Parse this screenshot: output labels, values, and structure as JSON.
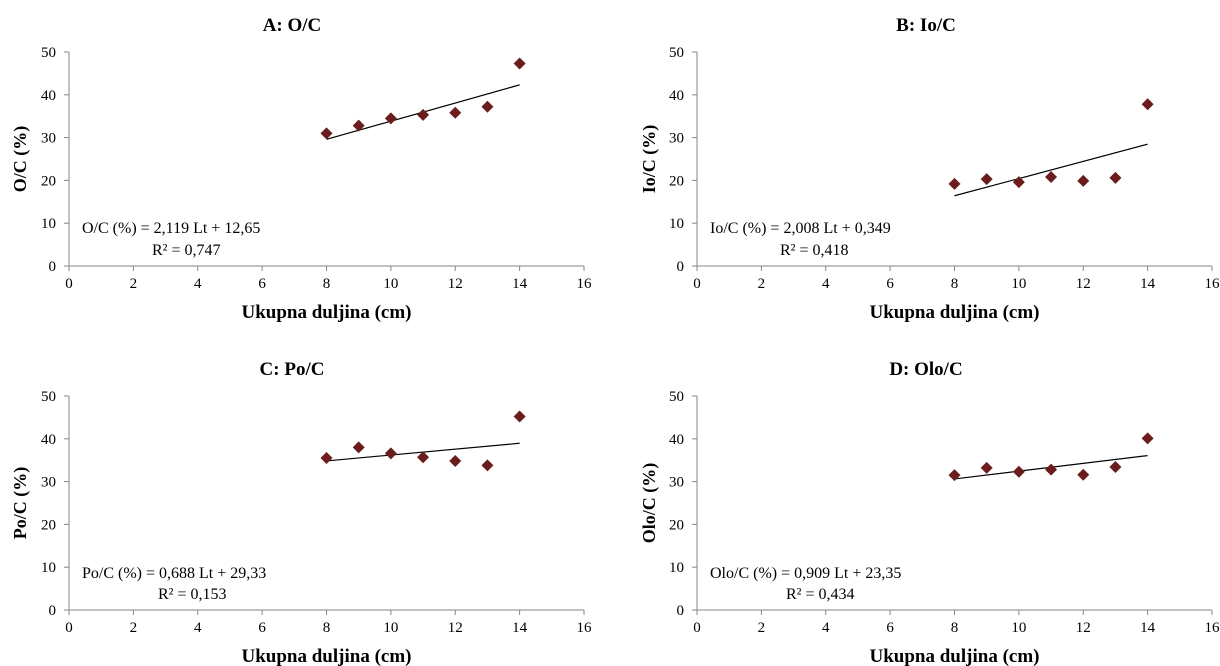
{
  "chart_data": [
    {
      "type": "scatter",
      "title": "A: O/C",
      "xlabel": "Ukupna duljina (cm)",
      "ylabel": "O/C (%)",
      "xlim": [
        0,
        16
      ],
      "ylim": [
        0,
        50
      ],
      "xticks": [
        "0",
        "2",
        "4",
        "6",
        "8",
        "10",
        "12",
        "14",
        "16"
      ],
      "yticks": [
        "0",
        "10",
        "20",
        "30",
        "40",
        "50"
      ],
      "grid": false,
      "points": [
        {
          "x": 8,
          "y": 31
        },
        {
          "x": 9,
          "y": 32.8
        },
        {
          "x": 10,
          "y": 34.5
        },
        {
          "x": 11,
          "y": 35.3
        },
        {
          "x": 12,
          "y": 35.8
        },
        {
          "x": 13,
          "y": 37.2
        },
        {
          "x": 14,
          "y": 47.3
        }
      ],
      "trendline": {
        "slope": 2.119,
        "intercept": 12.65,
        "x_range": [
          8,
          14
        ]
      },
      "equation": "O/C (%) = 2,119 Lt + 12,65",
      "r2": "R² = 0,747",
      "marker_color": "#6b1d1d"
    },
    {
      "type": "scatter",
      "title": "B: Io/C",
      "xlabel": "Ukupna duljina (cm)",
      "ylabel": "Io/C (%)",
      "xlim": [
        0,
        16
      ],
      "ylim": [
        0,
        50
      ],
      "xticks": [
        "0",
        "2",
        "4",
        "6",
        "8",
        "10",
        "12",
        "14",
        "16"
      ],
      "yticks": [
        "0",
        "10",
        "20",
        "30",
        "40",
        "50"
      ],
      "grid": false,
      "points": [
        {
          "x": 8,
          "y": 19.2
        },
        {
          "x": 9,
          "y": 20.3
        },
        {
          "x": 10,
          "y": 19.6
        },
        {
          "x": 11,
          "y": 20.8
        },
        {
          "x": 12,
          "y": 19.9
        },
        {
          "x": 13,
          "y": 20.6
        },
        {
          "x": 14,
          "y": 37.8
        }
      ],
      "trendline": {
        "slope": 2.008,
        "intercept": 0.349,
        "x_range": [
          8,
          14
        ]
      },
      "equation": "Io/C (%) = 2,008 Lt + 0,349",
      "r2": "R² = 0,418",
      "marker_color": "#6b1d1d"
    },
    {
      "type": "scatter",
      "title": "C: Po/C",
      "xlabel": "Ukupna duljina (cm)",
      "ylabel": "Po/C (%)",
      "xlim": [
        0,
        16
      ],
      "ylim": [
        0,
        50
      ],
      "xticks": [
        "0",
        "2",
        "4",
        "6",
        "8",
        "10",
        "12",
        "14",
        "16"
      ],
      "yticks": [
        "0",
        "10",
        "20",
        "30",
        "40",
        "50"
      ],
      "grid": false,
      "points": [
        {
          "x": 8,
          "y": 35.5
        },
        {
          "x": 9,
          "y": 38
        },
        {
          "x": 10,
          "y": 36.6
        },
        {
          "x": 11,
          "y": 35.7
        },
        {
          "x": 12,
          "y": 34.8
        },
        {
          "x": 13,
          "y": 33.8
        },
        {
          "x": 14,
          "y": 45.2
        }
      ],
      "trendline": {
        "slope": 0.688,
        "intercept": 29.33,
        "x_range": [
          8,
          14
        ]
      },
      "equation": "Po/C (%) = 0,688 Lt + 29,33",
      "r2": "R² = 0,153",
      "marker_color": "#6b1d1d"
    },
    {
      "type": "scatter",
      "title": "D: Olo/C",
      "xlabel": "Ukupna duljina (cm)",
      "ylabel": "Olo/C (%)",
      "xlim": [
        0,
        16
      ],
      "ylim": [
        0,
        50
      ],
      "xticks": [
        "0",
        "2",
        "4",
        "6",
        "8",
        "10",
        "12",
        "14",
        "16"
      ],
      "yticks": [
        "0",
        "10",
        "20",
        "30",
        "40",
        "50"
      ],
      "grid": false,
      "points": [
        {
          "x": 8,
          "y": 31.5
        },
        {
          "x": 9,
          "y": 33.2
        },
        {
          "x": 10,
          "y": 32.3
        },
        {
          "x": 11,
          "y": 32.8
        },
        {
          "x": 12,
          "y": 31.6
        },
        {
          "x": 13,
          "y": 33.4
        },
        {
          "x": 14,
          "y": 40.1
        }
      ],
      "trendline": {
        "slope": 0.909,
        "intercept": 23.35,
        "x_range": [
          8,
          14
        ]
      },
      "equation": "Olo/C (%) = 0,909 Lt + 23,35",
      "r2": "R² = 0,434",
      "marker_color": "#6b1d1d"
    }
  ]
}
